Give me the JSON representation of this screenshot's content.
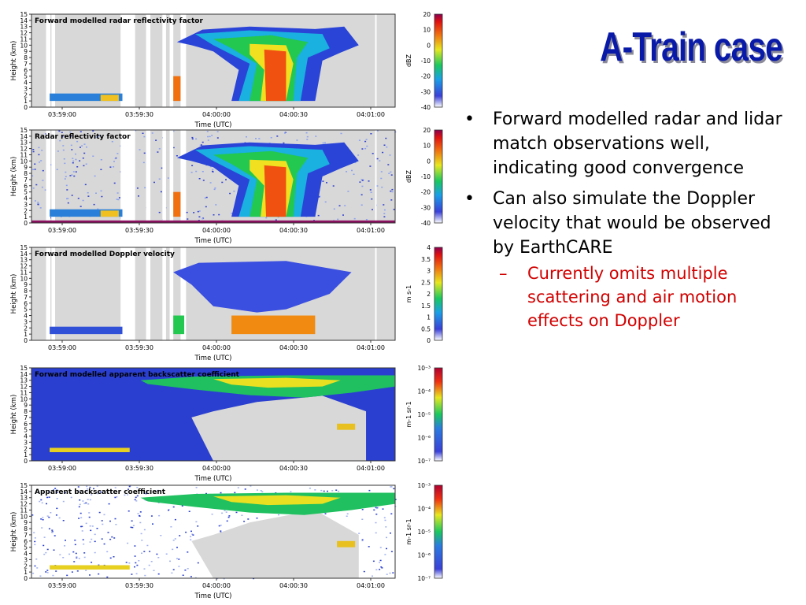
{
  "slide": {
    "title": "A-Train case",
    "bullets": [
      {
        "text": "Forward modelled radar and lidar match observations well, indicating good convergence"
      },
      {
        "text": "Can also simulate the Doppler velocity that would be observed by EarthCARE",
        "sub": [
          "Currently omits multiple scattering and air motion effects on Doppler"
        ]
      }
    ]
  },
  "panels": [
    {
      "title": "Forward modelled radar reflectivity factor",
      "kind": "radar",
      "ylabel": "Height (km)",
      "xlabel": "Time (UTC)",
      "xticks": [
        "03:59:00",
        "03:59:30",
        "04:00:00",
        "04:00:30",
        "04:01:00"
      ],
      "yticks": [
        "0",
        "1",
        "2",
        "3",
        "4",
        "5",
        "6",
        "7",
        "8",
        "9",
        "10",
        "11",
        "12",
        "13",
        "14",
        "15"
      ],
      "colorbar": {
        "unit": "dBZ",
        "ticks": [
          "20",
          "10",
          "0",
          "-10",
          "-20",
          "-30",
          "-40"
        ]
      }
    },
    {
      "title": "Radar reflectivity factor",
      "kind": "radar",
      "ylabel": "Height (km)",
      "xlabel": "Time (UTC)",
      "xticks": [
        "03:59:00",
        "03:59:30",
        "04:00:00",
        "04:00:30",
        "04:01:00"
      ],
      "yticks": [
        "0",
        "1",
        "2",
        "3",
        "4",
        "5",
        "6",
        "7",
        "8",
        "9",
        "10",
        "11",
        "12",
        "13",
        "14",
        "15"
      ],
      "colorbar": {
        "unit": "dBZ",
        "ticks": [
          "20",
          "10",
          "0",
          "-10",
          "-20",
          "-30",
          "-40"
        ]
      }
    },
    {
      "title": "Forward modelled Doppler velocity",
      "kind": "doppler",
      "ylabel": "Height (km)",
      "xlabel": "Time (UTC)",
      "xticks": [
        "03:59:00",
        "03:59:30",
        "04:00:00",
        "04:00:30",
        "04:01:00"
      ],
      "yticks": [
        "0",
        "1",
        "2",
        "3",
        "4",
        "5",
        "6",
        "7",
        "8",
        "9",
        "10",
        "11",
        "12",
        "13",
        "14",
        "15"
      ],
      "colorbar": {
        "unit": "m s-1",
        "ticks": [
          "4",
          "3.5",
          "3",
          "2.5",
          "2",
          "1.5",
          "1",
          "0.5",
          "0"
        ]
      }
    },
    {
      "title": "Forward modelled apparent backscatter coefficient",
      "kind": "lidar",
      "ylabel": "Height (km)",
      "xlabel": "Time (UTC)",
      "xticks": [
        "03:59:00",
        "03:59:30",
        "04:00:00",
        "04:00:30",
        "04:01:00"
      ],
      "yticks": [
        "0",
        "1",
        "2",
        "3",
        "4",
        "5",
        "6",
        "7",
        "8",
        "9",
        "10",
        "11",
        "12",
        "13",
        "14",
        "15"
      ],
      "colorbar": {
        "unit": "m-1 sr-1",
        "ticks": [
          "10⁻³",
          "10⁻⁴",
          "10⁻⁵",
          "10⁻⁶",
          "10⁻⁷"
        ]
      }
    },
    {
      "title": "Apparent backscatter coefficient",
      "kind": "lidarobs",
      "ylabel": "Height (km)",
      "xlabel": "Time (UTC)",
      "xticks": [
        "03:59:00",
        "03:59:30",
        "04:00:00",
        "04:00:30",
        "04:01:00"
      ],
      "yticks": [
        "0",
        "1",
        "2",
        "3",
        "4",
        "5",
        "6",
        "7",
        "8",
        "9",
        "10",
        "11",
        "12",
        "13",
        "14",
        "15"
      ],
      "colorbar": {
        "unit": "m-1 sr-1",
        "ticks": [
          "10⁻³",
          "10⁻⁴",
          "10⁻⁵",
          "10⁻⁶",
          "10⁻⁷"
        ]
      }
    }
  ]
}
